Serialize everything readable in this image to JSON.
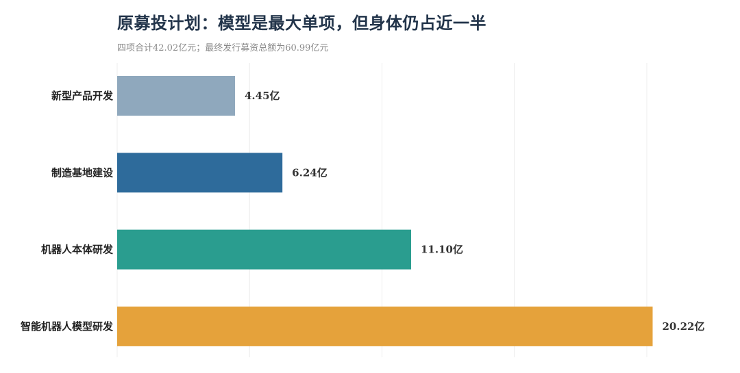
{
  "chart_data": {
    "type": "bar",
    "orientation": "horizontal",
    "title": "原募投计划：模型是最大单项，但身体仍占近一半",
    "subtitle": "四项合计42.02亿元；最终发行募资总额为60.99亿元",
    "categories": [
      "新型产品开发",
      "制造基地建设",
      "机器人本体研发",
      "智能机器人模型研发"
    ],
    "values": [
      4.45,
      6.24,
      11.1,
      20.22
    ],
    "value_labels": [
      "4.45亿",
      "6.24亿",
      "11.10亿",
      "20.22亿"
    ],
    "colors": [
      "#8fa8bd",
      "#2e6b9b",
      "#2a9d8f",
      "#e5a23b"
    ],
    "xlim": [
      0,
      20
    ],
    "grid": true,
    "legend": "none"
  }
}
